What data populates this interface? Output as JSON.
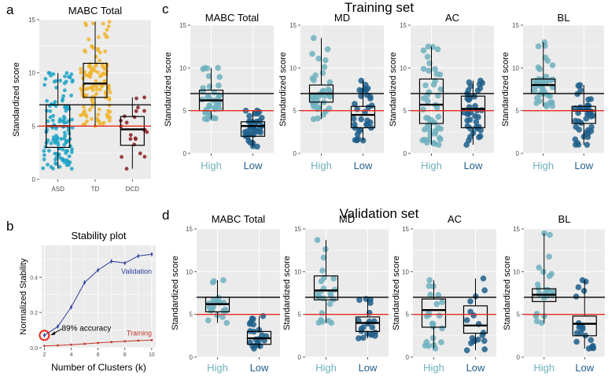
{
  "figure": {
    "panel_letters": {
      "a": "a",
      "b": "b",
      "c": "c",
      "d": "d"
    },
    "section_titles": {
      "training": "Training set",
      "validation": "Validation set"
    }
  },
  "colors": {
    "panel_bg": "#ebebeb",
    "grid": "#ffffff",
    "axis_text": "#4d4d4d",
    "asd": "#1ba3c6",
    "td": "#f0b429",
    "dcd": "#8b1e23",
    "high": "#6fb0be",
    "low": "#1f5f8b",
    "ref_black": "#000000",
    "ref_red": "#e8291c",
    "validation_line": "#2e3f9e",
    "training_line": "#c0392b",
    "accuracy_circle": "#e8291c"
  },
  "chart_data": [
    {
      "id": "a",
      "type": "scatter",
      "subtype": "jitter-boxplot",
      "title": "MABC Total",
      "xlabel": "",
      "ylabel": "Standardized score",
      "ylim": [
        0,
        15
      ],
      "yticks": [
        0,
        5,
        10,
        15
      ],
      "grid": false,
      "hlines": [
        7,
        5
      ],
      "categories": [
        "ASD",
        "TD",
        "DCD"
      ],
      "boxes": [
        {
          "name": "ASD",
          "min": 1,
          "q1": 3,
          "median": 5,
          "q3": 7,
          "max": 10,
          "n": 130,
          "color_key": "asd"
        },
        {
          "name": "TD",
          "min": 5,
          "q1": 7.7,
          "median": 9,
          "q3": 10.9,
          "max": 14.8,
          "n": 130,
          "color_key": "td"
        },
        {
          "name": "DCD",
          "min": 1,
          "q1": 3.2,
          "median": 4.7,
          "q3": 5.9,
          "max": 7.7,
          "n": 22,
          "color_key": "dcd"
        }
      ]
    },
    {
      "id": "b",
      "type": "line",
      "title": "Stability plot",
      "xlabel": "Number of Clusters (k)",
      "ylabel": "Normalized Stability",
      "xlim": [
        1.8,
        10.3
      ],
      "ylim": [
        0,
        0.58
      ],
      "xticks": [
        2,
        4,
        6,
        8,
        10
      ],
      "yticks": [
        0.0,
        0.2,
        0.4
      ],
      "ytick_labels": [
        "0.0",
        "0.2",
        "0.4"
      ],
      "x": [
        2,
        3,
        4,
        5,
        6,
        7,
        8,
        9,
        10
      ],
      "series": [
        {
          "name": "Validation",
          "values": [
            0.07,
            0.12,
            0.23,
            0.37,
            0.44,
            0.49,
            0.48,
            0.52,
            0.53
          ],
          "color_key": "validation_line"
        },
        {
          "name": "Training",
          "values": [
            0.01,
            0.013,
            0.017,
            0.022,
            0.027,
            0.032,
            0.036,
            0.04,
            0.043
          ],
          "color_key": "training_line"
        }
      ],
      "annotation": {
        "text": "89% accuracy",
        "x": 2,
        "y": 0.07
      }
    },
    {
      "id": "c1",
      "type": "scatter",
      "subtype": "jitter-boxplot",
      "section": "training",
      "title": "MABC Total",
      "ylabel": "Standardized score",
      "ylim": [
        0,
        15
      ],
      "yticks": [
        0,
        5,
        10,
        15
      ],
      "hlines": [
        7,
        5
      ],
      "categories": [
        "High",
        "Low"
      ],
      "boxes": [
        {
          "name": "High",
          "min": 4,
          "q1": 5,
          "median": 6.2,
          "q3": 7.4,
          "max": 10,
          "n": 36,
          "color_key": "high"
        },
        {
          "name": "Low",
          "min": 0.8,
          "q1": 2,
          "median": 3.2,
          "q3": 3.7,
          "max": 5,
          "n": 34,
          "color_key": "low"
        }
      ]
    },
    {
      "id": "c2",
      "type": "scatter",
      "subtype": "jitter-boxplot",
      "section": "training",
      "title": "MD",
      "ylabel": "Standardized score",
      "ylim": [
        0,
        15
      ],
      "yticks": [
        0,
        5,
        10,
        15
      ],
      "hlines": [
        7,
        5
      ],
      "categories": [
        "High",
        "Low"
      ],
      "boxes": [
        {
          "name": "High",
          "min": 4,
          "q1": 6,
          "median": 7,
          "q3": 8,
          "max": 13.5,
          "n": 36,
          "color_key": "high"
        },
        {
          "name": "Low",
          "min": 1.5,
          "q1": 3,
          "median": 4.5,
          "q3": 5.5,
          "max": 8.5,
          "n": 34,
          "color_key": "low"
        }
      ]
    },
    {
      "id": "c3",
      "type": "scatter",
      "subtype": "jitter-boxplot",
      "section": "training",
      "title": "AC",
      "ylabel": "Standardized score",
      "ylim": [
        0,
        15
      ],
      "yticks": [
        0,
        5,
        10,
        15
      ],
      "hlines": [
        7,
        5
      ],
      "categories": [
        "High",
        "Low"
      ],
      "boxes": [
        {
          "name": "High",
          "min": 1,
          "q1": 3.5,
          "median": 5.7,
          "q3": 8.7,
          "max": 12.5,
          "n": 46,
          "color_key": "high"
        },
        {
          "name": "Low",
          "min": 1,
          "q1": 3,
          "median": 5.2,
          "q3": 6.7,
          "max": 8.5,
          "n": 40,
          "color_key": "low"
        }
      ]
    },
    {
      "id": "c4",
      "type": "scatter",
      "subtype": "jitter-boxplot",
      "section": "training",
      "title": "BL",
      "ylabel": "Standardized score",
      "ylim": [
        0,
        15
      ],
      "yticks": [
        0,
        5,
        10,
        15
      ],
      "hlines": [
        7,
        5
      ],
      "categories": [
        "High",
        "Low"
      ],
      "boxes": [
        {
          "name": "High",
          "min": 5.5,
          "q1": 7,
          "median": 8,
          "q3": 8.7,
          "max": 13,
          "n": 40,
          "color_key": "high"
        },
        {
          "name": "Low",
          "min": 1,
          "q1": 3.5,
          "median": 5,
          "q3": 5.5,
          "max": 8,
          "n": 40,
          "color_key": "low"
        }
      ]
    },
    {
      "id": "d1",
      "type": "scatter",
      "subtype": "jitter-boxplot",
      "section": "validation",
      "title": "MABC Total",
      "ylabel": "Standardized score",
      "ylim": [
        0,
        15
      ],
      "yticks": [
        0,
        5,
        10,
        15
      ],
      "hlines": [
        7,
        5
      ],
      "categories": [
        "High",
        "Low"
      ],
      "boxes": [
        {
          "name": "High",
          "min": 4,
          "q1": 5.3,
          "median": 6.2,
          "q3": 7,
          "max": 9,
          "n": 22,
          "color_key": "high"
        },
        {
          "name": "Low",
          "min": 1,
          "q1": 1.5,
          "median": 2.2,
          "q3": 3,
          "max": 4.8,
          "n": 22,
          "color_key": "low"
        }
      ]
    },
    {
      "id": "d2",
      "type": "scatter",
      "subtype": "jitter-boxplot",
      "section": "validation",
      "title": "MD",
      "ylabel": "Standardized score",
      "ylim": [
        0,
        15
      ],
      "yticks": [
        0,
        5,
        10,
        15
      ],
      "hlines": [
        7,
        5
      ],
      "categories": [
        "High",
        "Low"
      ],
      "boxes": [
        {
          "name": "High",
          "min": 4,
          "q1": 6.7,
          "median": 7.8,
          "q3": 9.5,
          "max": 13.7,
          "n": 24,
          "color_key": "high"
        },
        {
          "name": "Low",
          "min": 2.2,
          "q1": 3,
          "median": 4,
          "q3": 4.7,
          "max": 6.8,
          "n": 20,
          "color_key": "low"
        }
      ]
    },
    {
      "id": "d3",
      "type": "scatter",
      "subtype": "jitter-boxplot",
      "section": "validation",
      "title": "AC",
      "ylabel": "Standardized score",
      "ylim": [
        0,
        15
      ],
      "yticks": [
        0,
        5,
        10,
        15
      ],
      "hlines": [
        7,
        5
      ],
      "categories": [
        "High",
        "Low"
      ],
      "boxes": [
        {
          "name": "High",
          "min": 1,
          "q1": 3.5,
          "median": 5.5,
          "q3": 6.8,
          "max": 9,
          "n": 22,
          "color_key": "high"
        },
        {
          "name": "Low",
          "min": 0.8,
          "q1": 2.8,
          "median": 3.7,
          "q3": 6,
          "max": 9.2,
          "n": 18,
          "color_key": "low"
        }
      ]
    },
    {
      "id": "d4",
      "type": "scatter",
      "subtype": "jitter-boxplot",
      "section": "validation",
      "title": "BL",
      "ylabel": "Standardized score",
      "ylim": [
        0,
        15
      ],
      "yticks": [
        0,
        5,
        10,
        15
      ],
      "hlines": [
        7,
        5
      ],
      "categories": [
        "High",
        "Low"
      ],
      "boxes": [
        {
          "name": "High",
          "min": 4,
          "q1": 6.5,
          "median": 7.3,
          "q3": 8,
          "max": 14.5,
          "n": 24,
          "color_key": "high"
        },
        {
          "name": "Low",
          "min": 1,
          "q1": 2.5,
          "median": 3.9,
          "q3": 4.8,
          "max": 9,
          "n": 20,
          "color_key": "low"
        }
      ]
    }
  ]
}
